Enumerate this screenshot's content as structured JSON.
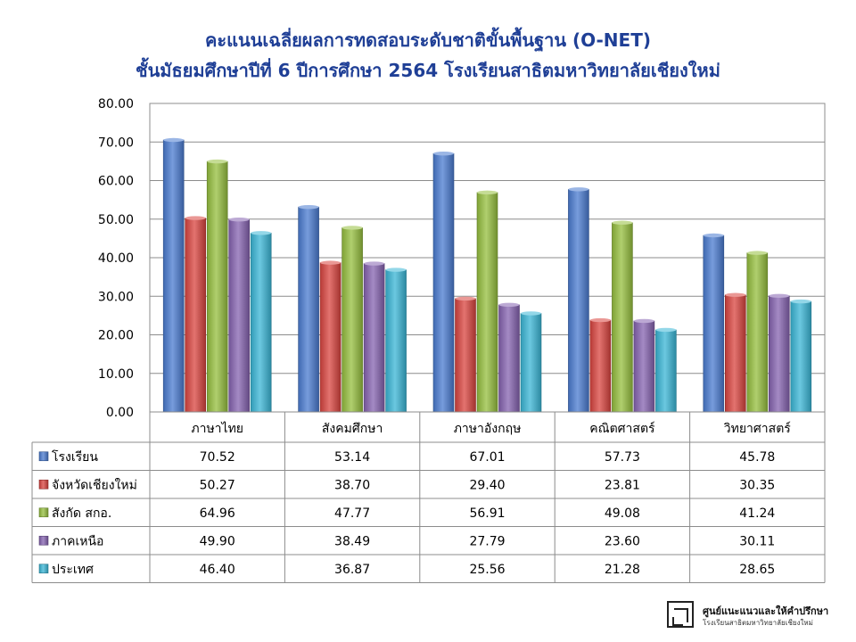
{
  "chart_data": {
    "type": "bar",
    "title": "คะแนนเฉลี่ยผลการทดสอบระดับชาติขั้นพื้นฐาน (O-NET)",
    "subtitle": "ชั้นมัธยมศึกษาปีที่ 6 ปีการศึกษา 2564 โรงเรียนสาธิตมหาวิทยาลัยเชียงใหม่",
    "categories": [
      "ภาษาไทย",
      "สังคมศึกษา",
      "ภาษาอังกฤษ",
      "คณิตศาสตร์",
      "วิทยาศาสตร์"
    ],
    "ylim": [
      0,
      80
    ],
    "yticks": [
      "0.00",
      "10.00",
      "20.00",
      "30.00",
      "40.00",
      "50.00",
      "60.00",
      "70.00",
      "80.00"
    ],
    "grid": true,
    "legend": "data-table-left",
    "series": [
      {
        "name": "โรงเรียน",
        "color": "#4a7bd0",
        "values": [
          70.52,
          53.14,
          67.01,
          57.73,
          45.78
        ],
        "labels": [
          "70.52",
          "53.14",
          "67.01",
          "57.73",
          "45.78"
        ]
      },
      {
        "name": "จังหวัดเชียงใหม่",
        "color": "#d9443f",
        "values": [
          50.27,
          38.7,
          29.4,
          23.81,
          30.35
        ],
        "labels": [
          "50.27",
          "38.70",
          "29.40",
          "23.81",
          "30.35"
        ]
      },
      {
        "name": "สังกัด สกอ.",
        "color": "#95bf3e",
        "values": [
          64.96,
          47.77,
          56.91,
          49.08,
          41.24
        ],
        "labels": [
          "64.96",
          "47.77",
          "56.91",
          "49.08",
          "41.24"
        ]
      },
      {
        "name": "ภาคเหนือ",
        "color": "#8563b0",
        "values": [
          49.9,
          38.49,
          27.79,
          23.6,
          30.11
        ],
        "labels": [
          "49.90",
          "38.49",
          "27.79",
          "23.60",
          "30.11"
        ]
      },
      {
        "name": "ประเทศ",
        "color": "#3ab6d6",
        "values": [
          46.4,
          36.87,
          25.56,
          21.28,
          28.65
        ],
        "labels": [
          "46.40",
          "36.87",
          "25.56",
          "21.28",
          "28.65"
        ]
      }
    ]
  },
  "logo": {
    "line1": "ศูนย์แนะแนวและให้คำปรึกษา",
    "line2": "โรงเรียนสาธิตมหาวิทยาลัยเชียงใหม่"
  }
}
